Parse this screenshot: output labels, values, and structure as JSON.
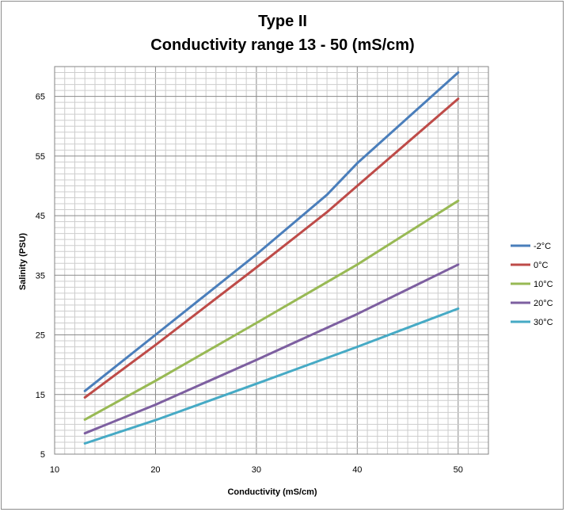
{
  "chart_data": {
    "type": "line",
    "title": "Type II",
    "subtitle": "Conductivity range 13 - 50 (mS/cm)",
    "xlabel": "Conductivity (mS/cm)",
    "ylabel": "Salinity (PSU)",
    "xlim": [
      10,
      53
    ],
    "ylim": [
      5,
      70
    ],
    "xticks": [
      "10",
      "20",
      "30",
      "40",
      "50"
    ],
    "yticks": [
      "5",
      "15",
      "25",
      "35",
      "45",
      "55",
      "65"
    ],
    "grid": true,
    "legend_position": "right",
    "series": [
      {
        "name": "-2°C",
        "color": "#4a7ebb",
        "x": [
          13,
          20,
          30,
          37,
          40,
          50
        ],
        "y": [
          15.6,
          25.0,
          38.5,
          48.5,
          53.8,
          69.0
        ]
      },
      {
        "name": "0°C",
        "color": "#be4b48",
        "x": [
          13,
          20,
          30,
          37,
          40,
          50
        ],
        "y": [
          14.5,
          23.3,
          36.3,
          45.6,
          50.0,
          64.6
        ]
      },
      {
        "name": "10°C",
        "color": "#98b954",
        "x": [
          13,
          20,
          30,
          40,
          50
        ],
        "y": [
          10.8,
          17.3,
          27.0,
          36.8,
          47.5
        ]
      },
      {
        "name": "20°C",
        "color": "#7d5fa0",
        "x": [
          13,
          20,
          30,
          40,
          50
        ],
        "y": [
          8.5,
          13.3,
          20.8,
          28.5,
          36.8
        ]
      },
      {
        "name": "30°C",
        "color": "#46aac5",
        "x": [
          13,
          20,
          30,
          40,
          50
        ],
        "y": [
          6.8,
          10.7,
          16.8,
          23.0,
          29.4
        ]
      }
    ]
  }
}
